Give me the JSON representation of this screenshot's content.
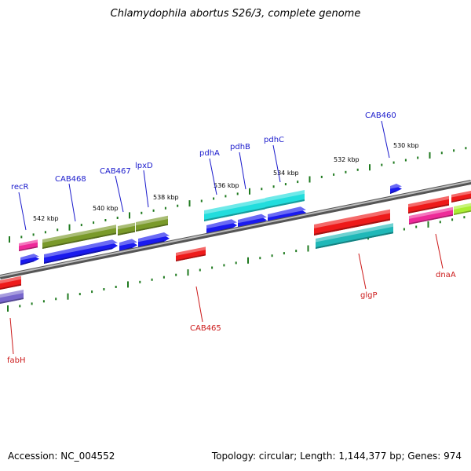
{
  "header": {
    "title": "Chlamydophila abortus S26/3, complete genome"
  },
  "footer": {
    "accession": "Accession: NC_004552",
    "stats": "Topology: circular; Length: 1,144,377 bp; Genes: 974"
  },
  "ruler": {
    "labels": [
      "542 kbp",
      "540 kbp",
      "538 kbp",
      "536 kbp",
      "534 kbp",
      "532 kbp",
      "530 kbp"
    ]
  },
  "genes_top": [
    "recR",
    "CAB468",
    "CAB467",
    "lpxD",
    "pdhA",
    "pdhB",
    "pdhC",
    "CAB460"
  ],
  "genes_bottom": [
    "fabH",
    "CAB465",
    "glgP",
    "dnaA"
  ],
  "colors": {
    "backbone": "#8a8a8a",
    "ticks": "#1f7a1f",
    "label_top": "#1a1acc",
    "label_bottom": "#cc1a1a",
    "olive": "#7a9a2a",
    "blue": "#1a1aee",
    "cyan": "#22dddd",
    "teal": "#20b8b8",
    "red": "#ee1a1a",
    "magenta": "#ee2a99",
    "purple": "#7766cc",
    "lime": "#aaee33"
  }
}
